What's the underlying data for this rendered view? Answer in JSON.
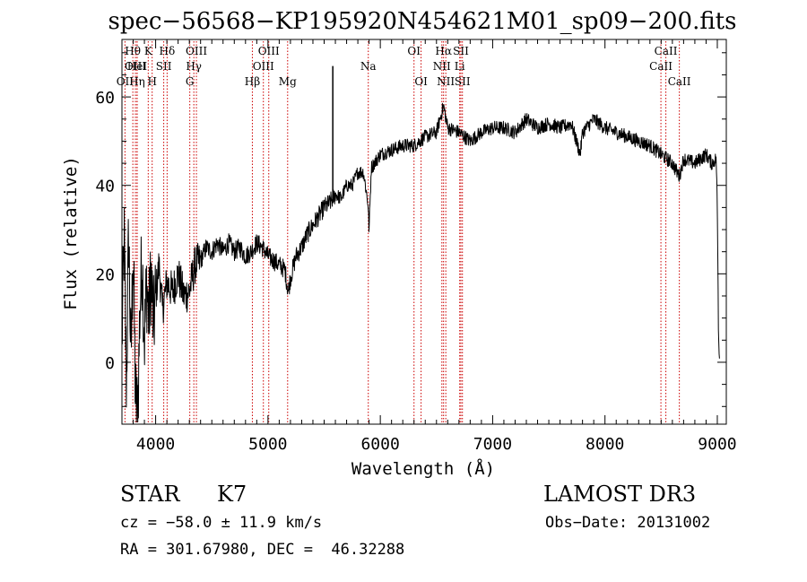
{
  "chart_data": {
    "type": "line",
    "title": "spec−56568−KP195920N454621M01_sp09−200.fits",
    "xlabel": "Wavelength (Å)",
    "ylabel": "Flux (relative)",
    "xlim": [
      3700,
      9080
    ],
    "ylim": [
      -14,
      73
    ],
    "xticks": [
      4000,
      5000,
      6000,
      7000,
      8000,
      9000
    ],
    "yticks": [
      0,
      20,
      40,
      60
    ],
    "grid": false,
    "series": [
      {
        "name": "spectrum",
        "anchors": [
          [
            3700,
            5
          ],
          [
            3720,
            28
          ],
          [
            3740,
            -5
          ],
          [
            3760,
            30
          ],
          [
            3780,
            0
          ],
          [
            3800,
            26
          ],
          [
            3820,
            -8
          ],
          [
            3840,
            -12
          ],
          [
            3860,
            12
          ],
          [
            3880,
            24
          ],
          [
            3900,
            5
          ],
          [
            3920,
            18
          ],
          [
            3940,
            10
          ],
          [
            3960,
            20
          ],
          [
            3980,
            8
          ],
          [
            4000,
            15
          ],
          [
            4030,
            22
          ],
          [
            4060,
            12
          ],
          [
            4100,
            18
          ],
          [
            4150,
            16
          ],
          [
            4200,
            20
          ],
          [
            4250,
            15
          ],
          [
            4300,
            16
          ],
          [
            4350,
            22
          ],
          [
            4400,
            23
          ],
          [
            4450,
            26
          ],
          [
            4500,
            25
          ],
          [
            4550,
            27
          ],
          [
            4600,
            25
          ],
          [
            4650,
            27
          ],
          [
            4700,
            25
          ],
          [
            4750,
            26
          ],
          [
            4800,
            24
          ],
          [
            4850,
            25
          ],
          [
            4900,
            27
          ],
          [
            4950,
            26
          ],
          [
            5000,
            24
          ],
          [
            5050,
            23
          ],
          [
            5100,
            22
          ],
          [
            5150,
            21
          ],
          [
            5180,
            16
          ],
          [
            5200,
            19
          ],
          [
            5250,
            24
          ],
          [
            5300,
            26
          ],
          [
            5350,
            29
          ],
          [
            5400,
            31
          ],
          [
            5450,
            33
          ],
          [
            5500,
            35
          ],
          [
            5550,
            36
          ],
          [
            5600,
            38
          ],
          [
            5650,
            37
          ],
          [
            5700,
            40
          ],
          [
            5750,
            40
          ],
          [
            5800,
            43
          ],
          [
            5850,
            43
          ],
          [
            5890,
            36
          ],
          [
            5900,
            30
          ],
          [
            5920,
            44
          ],
          [
            6000,
            47
          ],
          [
            6100,
            48
          ],
          [
            6200,
            49
          ],
          [
            6300,
            49
          ],
          [
            6400,
            51
          ],
          [
            6500,
            52
          ],
          [
            6563,
            58
          ],
          [
            6600,
            53
          ],
          [
            6700,
            52
          ],
          [
            6800,
            50
          ],
          [
            6900,
            52
          ],
          [
            7000,
            53
          ],
          [
            7100,
            53
          ],
          [
            7200,
            52
          ],
          [
            7300,
            55
          ],
          [
            7400,
            53
          ],
          [
            7500,
            54
          ],
          [
            7600,
            53
          ],
          [
            7700,
            54
          ],
          [
            7780,
            47
          ],
          [
            7800,
            52
          ],
          [
            7900,
            55
          ],
          [
            8000,
            53
          ],
          [
            8100,
            52
          ],
          [
            8200,
            51
          ],
          [
            8300,
            50
          ],
          [
            8400,
            49
          ],
          [
            8500,
            47
          ],
          [
            8600,
            45
          ],
          [
            8662,
            42
          ],
          [
            8700,
            46
          ],
          [
            8800,
            45
          ],
          [
            8900,
            47
          ],
          [
            8950,
            45
          ],
          [
            8990,
            46
          ],
          [
            9000,
            35
          ],
          [
            9010,
            8
          ],
          [
            9020,
            0
          ]
        ]
      }
    ],
    "spike": {
      "x": 5577,
      "from": 36,
      "to": 67
    },
    "line_markers": [
      {
        "label": "OII",
        "x": 3727,
        "row": 3
      },
      {
        "label": "Hθ",
        "x": 3797,
        "row": 1
      },
      {
        "label": "OIII",
        "x": 3820,
        "row": 2
      },
      {
        "label": "HeI",
        "x": 3835,
        "row": 2
      },
      {
        "label": "Hη",
        "x": 3835,
        "row": 3
      },
      {
        "label": "K",
        "x": 3934,
        "row": 1
      },
      {
        "label": "H",
        "x": 3969,
        "row": 3
      },
      {
        "label": "SII",
        "x": 4072,
        "row": 2
      },
      {
        "label": "Hδ",
        "x": 4102,
        "row": 1
      },
      {
        "label": "OIII",
        "x": 4363,
        "row": 1
      },
      {
        "label": "Hγ",
        "x": 4340,
        "row": 2
      },
      {
        "label": "G",
        "x": 4304,
        "row": 3
      },
      {
        "label": "Hβ",
        "x": 4861,
        "row": 3
      },
      {
        "label": "OIII",
        "x": 4959,
        "row": 2
      },
      {
        "label": "OIII",
        "x": 5007,
        "row": 1
      },
      {
        "label": "Mg",
        "x": 5175,
        "row": 3
      },
      {
        "label": "Na",
        "x": 5893,
        "row": 2
      },
      {
        "label": "OI",
        "x": 6300,
        "row": 1
      },
      {
        "label": "OI",
        "x": 6363,
        "row": 3
      },
      {
        "label": "NII",
        "x": 6548,
        "row": 2
      },
      {
        "label": "Hα",
        "x": 6563,
        "row": 1
      },
      {
        "label": "NII",
        "x": 6583,
        "row": 3
      },
      {
        "label": "Li",
        "x": 6707,
        "row": 2
      },
      {
        "label": "SII",
        "x": 6717,
        "row": 1
      },
      {
        "label": "SII",
        "x": 6731,
        "row": 3
      },
      {
        "label": "CaII",
        "x": 8498,
        "row": 2
      },
      {
        "label": "CaII",
        "x": 8542,
        "row": 1
      },
      {
        "label": "CaII",
        "x": 8662,
        "row": 3
      }
    ]
  },
  "info": {
    "object_class": "STAR",
    "subclass": "K7",
    "survey": "LAMOST DR3",
    "redshift_line": "cz = −58.0 ± 11.9 km/s",
    "obs_date_line": "Obs−Date: 20131002",
    "coords_line": "RA = 301.67980, DEC =  46.32288"
  },
  "colors": {
    "spectrum": "#000000",
    "marker_lines": "#cc0000",
    "axes": "#000000"
  }
}
